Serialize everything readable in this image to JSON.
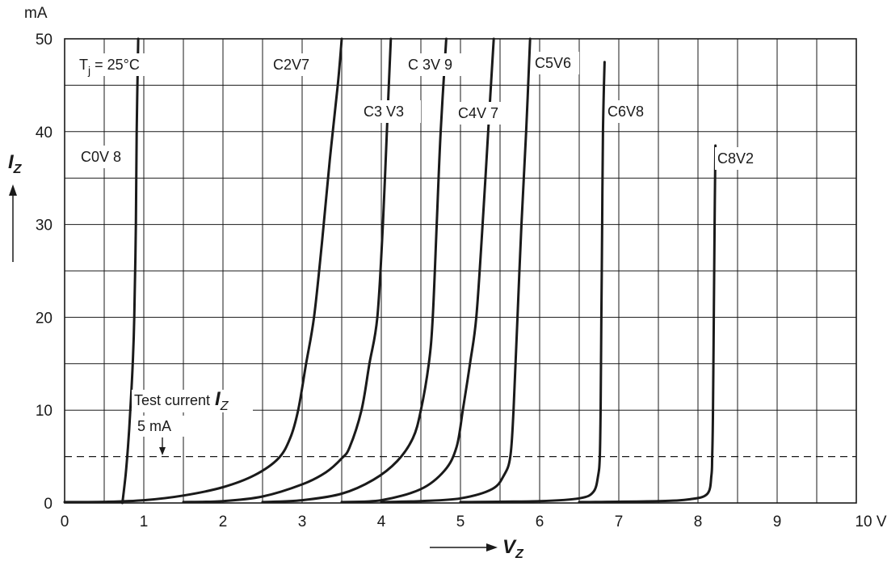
{
  "chart_data": {
    "type": "line",
    "ylabel_unit": "mA",
    "ylabel": "I",
    "ylabel_sub": "Z",
    "xlabel": "V",
    "xlabel_sub": "Z",
    "xlim": [
      0,
      10
    ],
    "ylim": [
      0,
      50
    ],
    "x_ticks": [
      0,
      1,
      2,
      3,
      4,
      5,
      6,
      7,
      8,
      9
    ],
    "x_tick_last": "10 V",
    "y_ticks": [
      0,
      10,
      20,
      30,
      40,
      50
    ],
    "grid": true,
    "temperature_label": {
      "prefix": "T",
      "sub": "j",
      "suffix": " = 25°C"
    },
    "test_current": {
      "value": 5,
      "label": "Test current",
      "label_var": "I",
      "label_sub": "Z",
      "value_label": "5 mA"
    },
    "series": [
      {
        "name": "C0V 8",
        "points": [
          [
            0.73,
            0
          ],
          [
            0.77,
            3
          ],
          [
            0.8,
            6
          ],
          [
            0.83,
            10
          ],
          [
            0.86,
            15
          ],
          [
            0.88,
            20
          ],
          [
            0.9,
            30
          ],
          [
            0.91,
            40
          ],
          [
            0.93,
            50
          ]
        ]
      },
      {
        "name": "C2V7",
        "points": [
          [
            0,
            0.1
          ],
          [
            0.5,
            0.12
          ],
          [
            1.0,
            0.3
          ],
          [
            1.5,
            0.8
          ],
          [
            2.0,
            1.7
          ],
          [
            2.4,
            3.0
          ],
          [
            2.7,
            4.8
          ],
          [
            2.85,
            7
          ],
          [
            2.95,
            10
          ],
          [
            3.05,
            15
          ],
          [
            3.15,
            20
          ],
          [
            3.25,
            28
          ],
          [
            3.35,
            37
          ],
          [
            3.45,
            45
          ],
          [
            3.5,
            50
          ]
        ]
      },
      {
        "name": "C3 V3",
        "points": [
          [
            1.5,
            0.1
          ],
          [
            2.0,
            0.2
          ],
          [
            2.5,
            0.7
          ],
          [
            3.0,
            2.0
          ],
          [
            3.3,
            3.3
          ],
          [
            3.5,
            4.8
          ],
          [
            3.6,
            6
          ],
          [
            3.75,
            10
          ],
          [
            3.85,
            15
          ],
          [
            3.95,
            20
          ],
          [
            4.02,
            30
          ],
          [
            4.07,
            40
          ],
          [
            4.12,
            50
          ]
        ]
      },
      {
        "name": "C 3V 9",
        "points": [
          [
            2.5,
            0.1
          ],
          [
            3.0,
            0.3
          ],
          [
            3.5,
            1.0
          ],
          [
            3.9,
            2.5
          ],
          [
            4.2,
            4.5
          ],
          [
            4.4,
            7
          ],
          [
            4.5,
            10
          ],
          [
            4.6,
            15
          ],
          [
            4.65,
            20
          ],
          [
            4.7,
            30
          ],
          [
            4.75,
            40
          ],
          [
            4.82,
            50
          ]
        ]
      },
      {
        "name": "C4V 7",
        "points": [
          [
            3.5,
            0.1
          ],
          [
            4.0,
            0.3
          ],
          [
            4.5,
            1.5
          ],
          [
            4.8,
            3.5
          ],
          [
            4.95,
            6
          ],
          [
            5.03,
            10
          ],
          [
            5.12,
            15
          ],
          [
            5.2,
            20
          ],
          [
            5.28,
            30
          ],
          [
            5.35,
            40
          ],
          [
            5.42,
            50
          ]
        ]
      },
      {
        "name": "C5V6",
        "points": [
          [
            4.0,
            0.1
          ],
          [
            4.5,
            0.2
          ],
          [
            5.0,
            0.5
          ],
          [
            5.4,
            1.5
          ],
          [
            5.55,
            3
          ],
          [
            5.63,
            5
          ],
          [
            5.67,
            10
          ],
          [
            5.72,
            20
          ],
          [
            5.77,
            30
          ],
          [
            5.83,
            40
          ],
          [
            5.88,
            50
          ]
        ]
      },
      {
        "name": "C6V8",
        "points": [
          [
            5.0,
            0.1
          ],
          [
            6.0,
            0.2
          ],
          [
            6.5,
            0.5
          ],
          [
            6.68,
            1.2
          ],
          [
            6.74,
            3
          ],
          [
            6.76,
            5
          ],
          [
            6.77,
            10
          ],
          [
            6.78,
            20
          ],
          [
            6.79,
            30
          ],
          [
            6.8,
            40
          ],
          [
            6.82,
            47.5
          ]
        ]
      },
      {
        "name": "C8V2",
        "points": [
          [
            6.5,
            0.1
          ],
          [
            7.5,
            0.2
          ],
          [
            7.9,
            0.4
          ],
          [
            8.12,
            1.0
          ],
          [
            8.17,
            3
          ],
          [
            8.18,
            5
          ],
          [
            8.19,
            10
          ],
          [
            8.2,
            20
          ],
          [
            8.21,
            30
          ],
          [
            8.22,
            38.5
          ]
        ]
      }
    ],
    "label_text": {
      "c08": "C0V 8",
      "c27": "C2V7",
      "c33": "C3 V3",
      "c39": "C 3V 9",
      "c47": "C4V 7",
      "c56": "C5V6",
      "c68": "C6V8",
      "c82": "C8V2"
    }
  }
}
